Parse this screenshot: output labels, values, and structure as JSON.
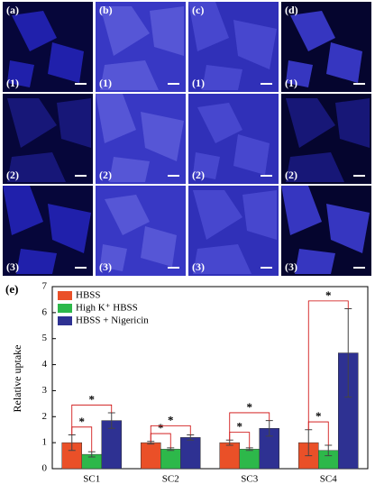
{
  "image_panels": {
    "columns": [
      "(a)",
      "(b)",
      "(c)",
      "(d)"
    ],
    "rows": [
      "(1)",
      "(2)",
      "(3)"
    ]
  },
  "chart_data": {
    "type": "bar",
    "panel_label": "(e)",
    "y_label": "Relative uptake",
    "categories": [
      "SC1",
      "SC2",
      "SC3",
      "SC4"
    ],
    "series": [
      {
        "name": "HBSS",
        "color": "#ea5028",
        "values": [
          1.0,
          1.0,
          1.0,
          1.0
        ],
        "errors": [
          0.3,
          0.05,
          0.1,
          0.5
        ]
      },
      {
        "name": "High K⁺ HBSS",
        "color": "#2db84a",
        "values": [
          0.55,
          0.75,
          0.75,
          0.7
        ],
        "errors": [
          0.1,
          0.05,
          0.05,
          0.2
        ]
      },
      {
        "name": "HBSS + Nigericin",
        "color": "#2e3192",
        "values": [
          1.85,
          1.2,
          1.55,
          4.45
        ],
        "errors": [
          0.3,
          0.1,
          0.3,
          1.7
        ]
      }
    ],
    "annotations": [
      "*",
      "*",
      "*",
      "*",
      "*",
      "*",
      "*",
      "*"
    ],
    "ylim": [
      0,
      7
    ],
    "yticks": [
      0,
      1,
      2,
      3,
      4,
      5,
      6,
      7
    ],
    "grid": false,
    "legend": "upper left"
  }
}
